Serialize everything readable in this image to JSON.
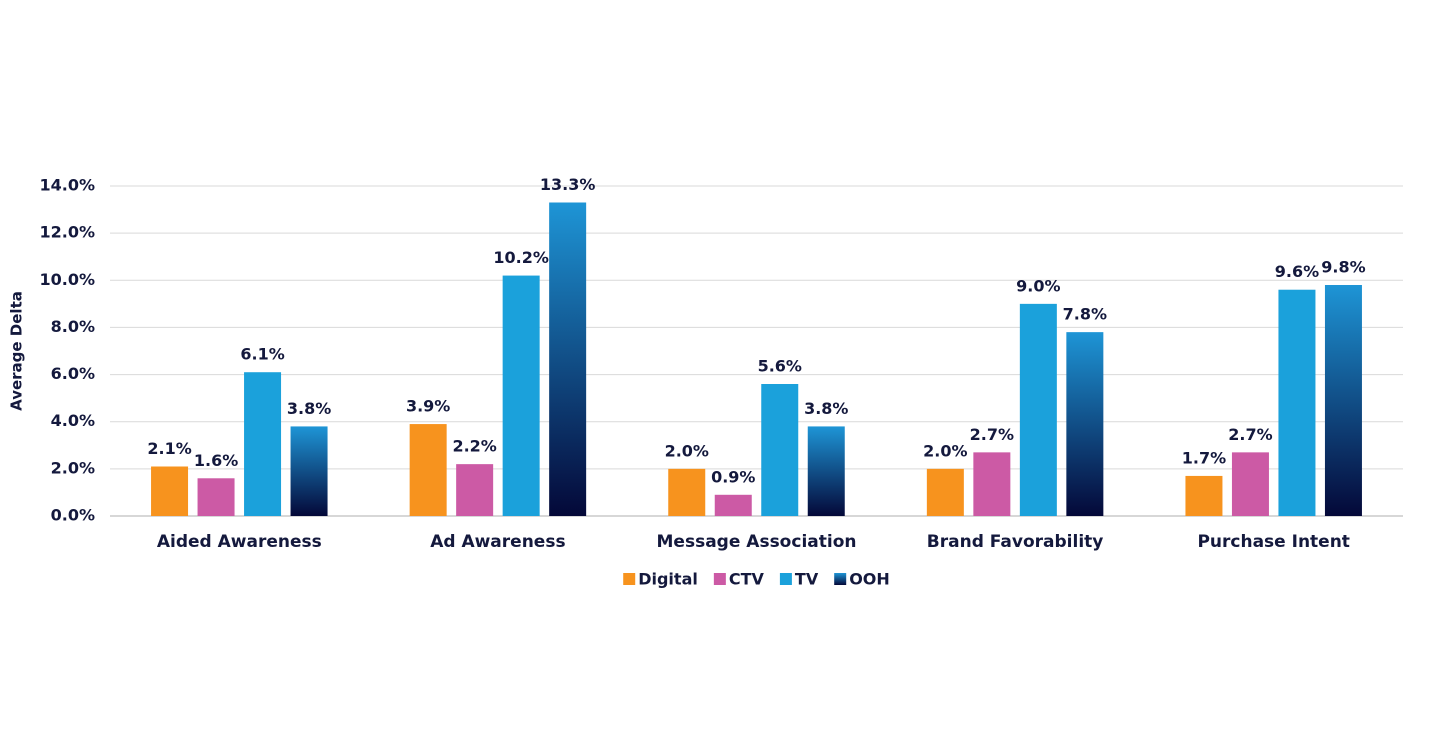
{
  "chart_data": {
    "type": "bar",
    "y_label": "Average Delta",
    "categories": [
      "Aided Awareness",
      "Ad Awareness",
      "Message Association",
      "Brand Favorability",
      "Purchase Intent"
    ],
    "series": [
      {
        "name": "Digital",
        "color": "#f7931e",
        "values": [
          2.1,
          3.9,
          2.0,
          2.0,
          1.7
        ],
        "value_labels": [
          "2.1%",
          "3.9%",
          "2.0%",
          "2.0%",
          "1.7%"
        ]
      },
      {
        "name": "CTV",
        "color": "#cc5aa5",
        "values": [
          1.6,
          2.2,
          0.9,
          2.7,
          2.7
        ],
        "value_labels": [
          "1.6%",
          "2.2%",
          "0.9%",
          "2.7%",
          "2.7%"
        ]
      },
      {
        "name": "TV",
        "color": "#1ba1db",
        "values": [
          6.1,
          10.2,
          5.6,
          9.0,
          9.6
        ],
        "value_labels": [
          "6.1%",
          "10.2%",
          "5.6%",
          "9.0%",
          "9.6%"
        ]
      },
      {
        "name": "OOH",
        "color": [
          "#1e95d6",
          "#040838"
        ],
        "values": [
          3.8,
          13.3,
          3.8,
          7.8,
          9.8
        ],
        "value_labels": [
          "3.8%",
          "13.3%",
          "3.8%",
          "7.8%",
          "9.8%"
        ]
      }
    ],
    "ylim": [
      0,
      14
    ],
    "yticks": [
      {
        "value": 0,
        "label": "0.0%"
      },
      {
        "value": 2,
        "label": "2.0%"
      },
      {
        "value": 4,
        "label": "4.0%"
      },
      {
        "value": 6,
        "label": "6.0%"
      },
      {
        "value": 8,
        "label": "8.0%"
      },
      {
        "value": 10,
        "label": "10.0%"
      },
      {
        "value": 12,
        "label": "12.0%"
      },
      {
        "value": 14,
        "label": "14.0%"
      }
    ],
    "grid": true,
    "legend": "bottom"
  }
}
